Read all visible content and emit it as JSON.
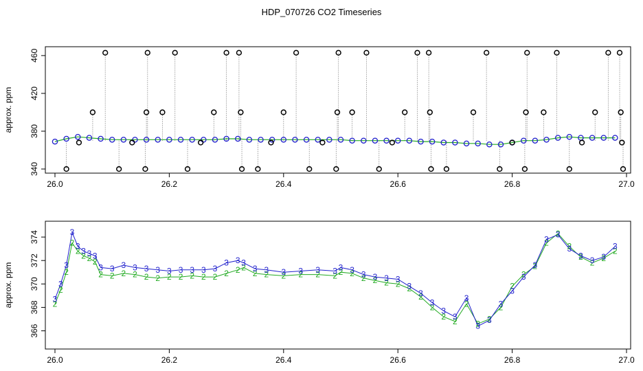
{
  "title": "HDP_070726  CO2 Timeseries",
  "chart_data": [
    {
      "type": "scatter",
      "title": "",
      "xlabel": "",
      "ylabel": "approx. ppm",
      "xlim": [
        26.0,
        27.0
      ],
      "ylim": [
        340,
        465
      ],
      "x_ticks": [
        26.0,
        26.2,
        26.4,
        26.6,
        26.8,
        27.0
      ],
      "x_tick_labels": [
        "26.0",
        "26.2",
        "26.4",
        "26.6",
        "26.8",
        "27.0"
      ],
      "y_ticks": [
        340,
        380,
        420,
        460
      ],
      "y_tick_labels": [
        "340",
        "380",
        "420",
        "460"
      ],
      "grid": false,
      "colors": {
        "series_2": "#22aa22",
        "series_3": "#1f1fcc",
        "outliers": "#000000",
        "drop_lines": "#888888"
      },
      "series": [
        {
          "marker": "circle",
          "color": "#1f1fcc",
          "x": [
            26.0,
            26.02,
            26.04,
            26.06,
            26.08,
            26.1,
            26.12,
            26.14,
            26.16,
            26.18,
            26.2,
            26.22,
            26.24,
            26.26,
            26.28,
            26.3,
            26.32,
            26.34,
            26.36,
            26.38,
            26.4,
            26.42,
            26.44,
            26.46,
            26.48,
            26.5,
            26.52,
            26.54,
            26.56,
            26.58,
            26.6,
            26.62,
            26.64,
            26.66,
            26.68,
            26.7,
            26.72,
            26.74,
            26.76,
            26.78,
            26.8,
            26.82,
            26.84,
            26.86,
            26.88,
            26.9,
            26.92,
            26.94,
            26.96,
            26.98
          ],
          "y": [
            369,
            372,
            374,
            373,
            372,
            371,
            371,
            371,
            371,
            371,
            371,
            371,
            371,
            371,
            371,
            372,
            372,
            371,
            371,
            371,
            371,
            371,
            371,
            371,
            371,
            371,
            370,
            370,
            370,
            370,
            370,
            370,
            369,
            369,
            368,
            368,
            367,
            367,
            366,
            366,
            368,
            370,
            370,
            371,
            373,
            374,
            373,
            373,
            373,
            373
          ]
        }
      ],
      "outliers": [
        {
          "x": 26.02,
          "y": 340
        },
        {
          "x": 26.042,
          "y": 368
        },
        {
          "x": 26.066,
          "y": 400
        },
        {
          "x": 26.088,
          "y": 463
        },
        {
          "x": 26.112,
          "y": 340
        },
        {
          "x": 26.135,
          "y": 368
        },
        {
          "x": 26.158,
          "y": 340
        },
        {
          "x": 26.16,
          "y": 400
        },
        {
          "x": 26.162,
          "y": 463
        },
        {
          "x": 26.188,
          "y": 400
        },
        {
          "x": 26.21,
          "y": 463
        },
        {
          "x": 26.232,
          "y": 340
        },
        {
          "x": 26.255,
          "y": 368
        },
        {
          "x": 26.278,
          "y": 400
        },
        {
          "x": 26.3,
          "y": 463
        },
        {
          "x": 26.322,
          "y": 463
        },
        {
          "x": 26.325,
          "y": 400
        },
        {
          "x": 26.327,
          "y": 340
        },
        {
          "x": 26.355,
          "y": 340
        },
        {
          "x": 26.378,
          "y": 368
        },
        {
          "x": 26.4,
          "y": 400
        },
        {
          "x": 26.422,
          "y": 463
        },
        {
          "x": 26.445,
          "y": 340
        },
        {
          "x": 26.468,
          "y": 368
        },
        {
          "x": 26.492,
          "y": 340
        },
        {
          "x": 26.494,
          "y": 400
        },
        {
          "x": 26.496,
          "y": 463
        },
        {
          "x": 26.52,
          "y": 400
        },
        {
          "x": 26.545,
          "y": 463
        },
        {
          "x": 26.567,
          "y": 340
        },
        {
          "x": 26.59,
          "y": 368
        },
        {
          "x": 26.612,
          "y": 400
        },
        {
          "x": 26.634,
          "y": 463
        },
        {
          "x": 26.654,
          "y": 463
        },
        {
          "x": 26.656,
          "y": 400
        },
        {
          "x": 26.658,
          "y": 340
        },
        {
          "x": 26.685,
          "y": 340
        },
        {
          "x": 26.732,
          "y": 400
        },
        {
          "x": 26.755,
          "y": 463
        },
        {
          "x": 26.778,
          "y": 340
        },
        {
          "x": 26.8,
          "y": 368
        },
        {
          "x": 26.822,
          "y": 340
        },
        {
          "x": 26.824,
          "y": 400
        },
        {
          "x": 26.826,
          "y": 463
        },
        {
          "x": 26.855,
          "y": 400
        },
        {
          "x": 26.878,
          "y": 463
        },
        {
          "x": 26.9,
          "y": 340
        },
        {
          "x": 26.922,
          "y": 368
        },
        {
          "x": 26.945,
          "y": 400
        },
        {
          "x": 26.968,
          "y": 463
        },
        {
          "x": 26.988,
          "y": 463
        },
        {
          "x": 26.99,
          "y": 400
        },
        {
          "x": 26.992,
          "y": 368
        },
        {
          "x": 26.994,
          "y": 340
        }
      ]
    },
    {
      "type": "line",
      "title": "",
      "xlabel": "",
      "ylabel": "approx. ppm",
      "xlim": [
        26.0,
        27.0
      ],
      "ylim": [
        364.8,
        375.0
      ],
      "x_ticks": [
        26.0,
        26.2,
        26.4,
        26.6,
        26.8,
        27.0
      ],
      "x_tick_labels": [
        "26.0",
        "26.2",
        "26.4",
        "26.6",
        "26.8",
        "27.0"
      ],
      "y_ticks": [
        366,
        368,
        370,
        372,
        374
      ],
      "y_tick_labels": [
        "366",
        "368",
        "370",
        "372",
        "374"
      ],
      "grid": false,
      "x": [
        26.0,
        26.01,
        26.02,
        26.03,
        26.04,
        26.05,
        26.06,
        26.07,
        26.08,
        26.1,
        26.12,
        26.14,
        26.16,
        26.18,
        26.2,
        26.22,
        26.24,
        26.26,
        26.28,
        26.3,
        26.32,
        26.33,
        26.35,
        26.37,
        26.4,
        26.43,
        26.46,
        26.49,
        26.5,
        26.52,
        26.54,
        26.56,
        26.58,
        26.6,
        26.62,
        26.64,
        26.66,
        26.68,
        26.7,
        26.72,
        26.74,
        26.76,
        26.78,
        26.8,
        26.82,
        26.84,
        26.86,
        26.88,
        26.9,
        26.92,
        26.94,
        26.96,
        26.98
      ],
      "series": [
        {
          "marker": "2",
          "color": "#22aa22",
          "values": [
            368.3,
            369.5,
            371.0,
            373.5,
            372.8,
            372.4,
            372.2,
            371.9,
            370.8,
            370.7,
            370.9,
            370.8,
            370.6,
            370.5,
            370.6,
            370.6,
            370.7,
            370.6,
            370.6,
            370.9,
            371.2,
            371.4,
            370.9,
            370.8,
            370.7,
            370.8,
            370.8,
            370.7,
            371.0,
            370.9,
            370.5,
            370.3,
            370.1,
            370.0,
            369.6,
            368.9,
            368.0,
            367.2,
            366.8,
            368.3,
            366.6,
            367.0,
            368.0,
            369.8,
            370.8,
            371.5,
            373.5,
            374.3,
            373.2,
            372.3,
            371.8,
            372.2,
            372.8
          ]
        },
        {
          "marker": "3",
          "color": "#1f1fcc",
          "values": [
            368.7,
            370.0,
            371.6,
            374.4,
            373.2,
            372.8,
            372.6,
            372.4,
            371.4,
            371.3,
            371.6,
            371.4,
            371.3,
            371.2,
            371.1,
            371.2,
            371.2,
            371.2,
            371.3,
            371.8,
            372.0,
            371.8,
            371.3,
            371.2,
            371.0,
            371.1,
            371.2,
            371.1,
            371.4,
            371.2,
            370.8,
            370.6,
            370.5,
            370.4,
            369.8,
            369.2,
            368.4,
            367.7,
            367.2,
            368.8,
            366.4,
            366.9,
            368.3,
            369.4,
            370.6,
            371.6,
            373.8,
            374.2,
            373.0,
            372.4,
            372.0,
            372.3,
            373.2
          ]
        }
      ]
    }
  ]
}
